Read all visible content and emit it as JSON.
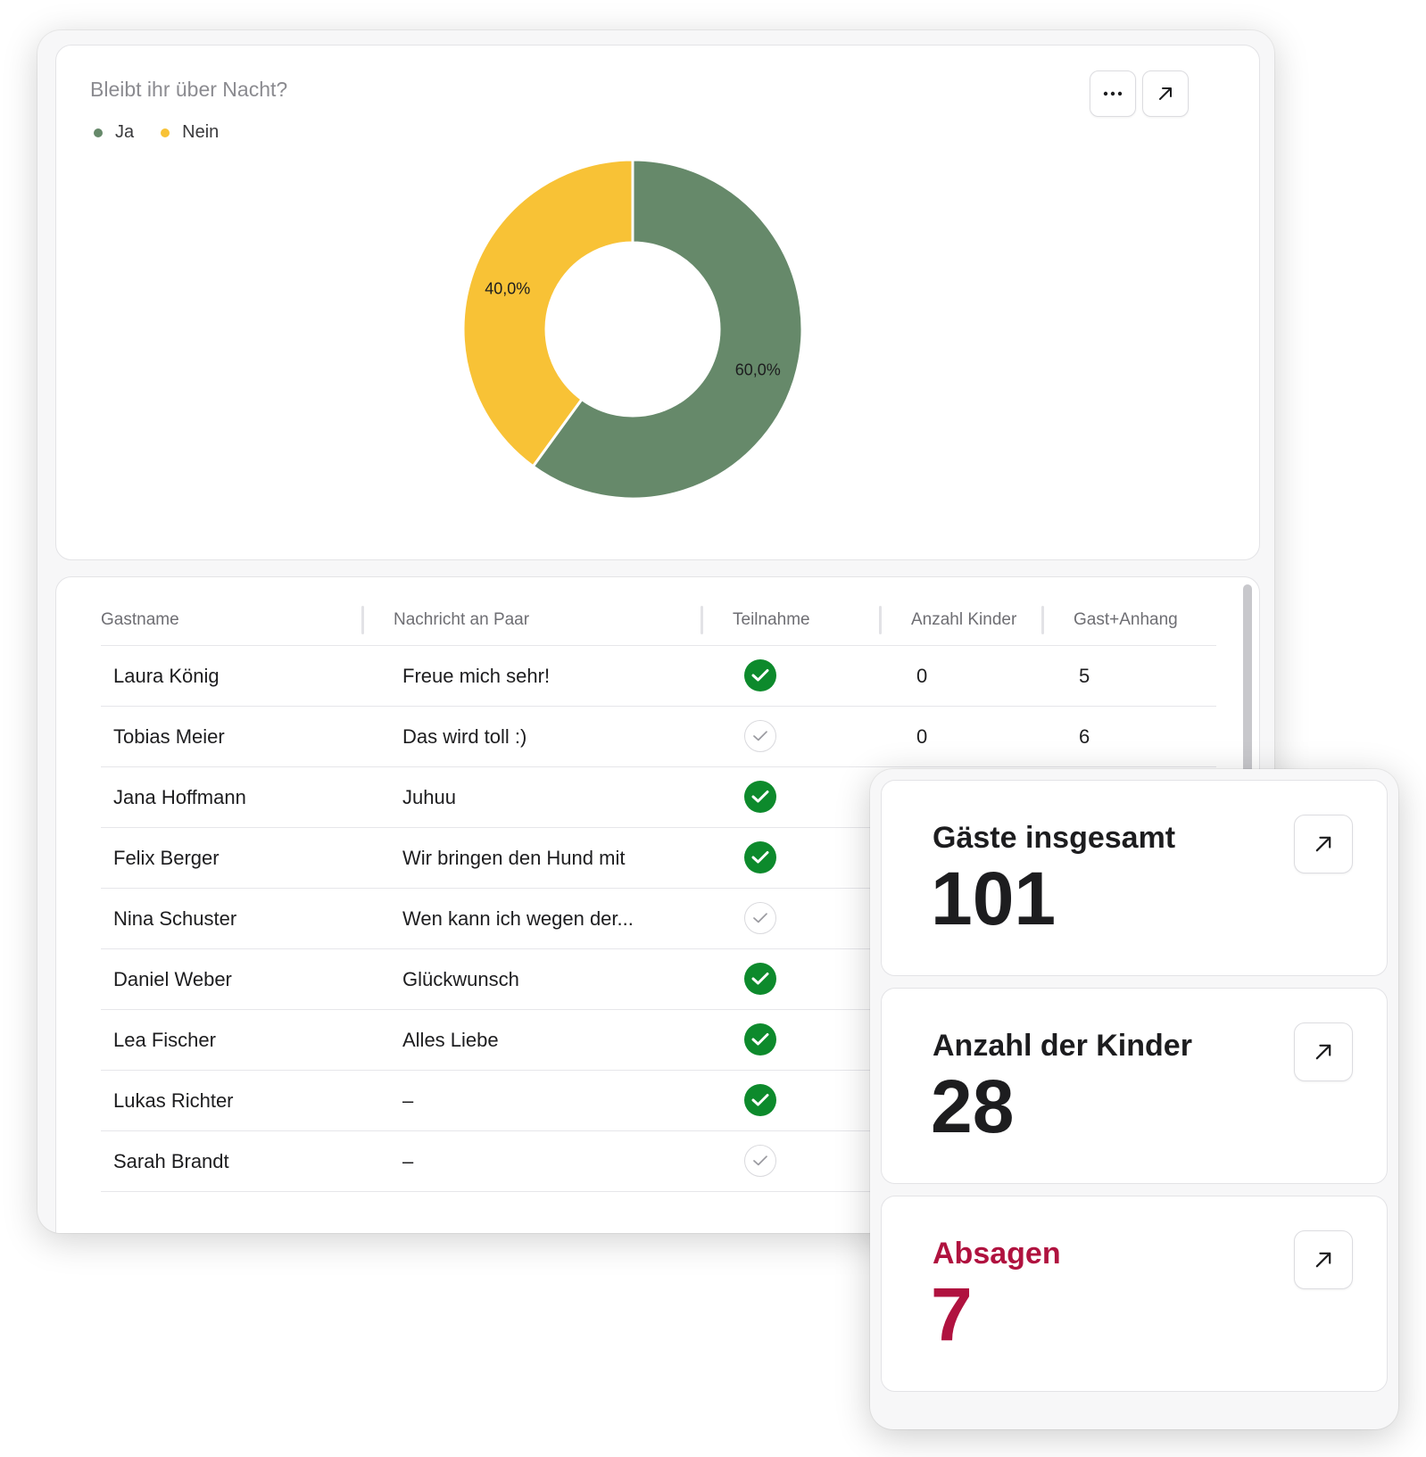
{
  "chart_card": {
    "title": "Bleibt ihr über Nacht?",
    "more_icon": "ellipsis-icon",
    "expand_icon": "arrow-up-right-icon"
  },
  "chart_data": {
    "type": "pie",
    "title": "Bleibt ihr über Nacht?",
    "donut": true,
    "legend_position": "top-left",
    "slices": [
      {
        "label": "Ja",
        "value": 60.0,
        "display": "60,0%",
        "color": "#66896a"
      },
      {
        "label": "Nein",
        "value": 40.0,
        "display": "40,0%",
        "color": "#f8c236"
      }
    ]
  },
  "table": {
    "columns": [
      "Gastname",
      "Nachricht an Paar",
      "Teilnahme",
      "Anzahl Kinder",
      "Gast+Anhang"
    ],
    "rows": [
      {
        "name": "Laura König",
        "message": "Freue mich sehr!",
        "attending": true,
        "children": "0",
        "party": "5"
      },
      {
        "name": "Tobias Meier",
        "message": "Das wird toll :)",
        "attending": false,
        "children": "0",
        "party": "6"
      },
      {
        "name": "Jana Hoffmann",
        "message": "Juhuu",
        "attending": true,
        "children": "",
        "party": ""
      },
      {
        "name": "Felix Berger",
        "message": "Wir bringen den Hund mit",
        "attending": true,
        "children": "",
        "party": ""
      },
      {
        "name": "Nina Schuster",
        "message": "Wen kann ich wegen der...",
        "attending": false,
        "children": "",
        "party": ""
      },
      {
        "name": "Daniel Weber",
        "message": "Glückwunsch",
        "attending": true,
        "children": "",
        "party": ""
      },
      {
        "name": "Lea Fischer",
        "message": "Alles Liebe",
        "attending": true,
        "children": "",
        "party": ""
      },
      {
        "name": "Lukas Richter",
        "message": "–",
        "attending": true,
        "children": "",
        "party": ""
      },
      {
        "name": "Sarah Brandt",
        "message": "–",
        "attending": false,
        "children": "",
        "party": ""
      }
    ],
    "check_icon": "checkmark-icon"
  },
  "stats": [
    {
      "label": "Gäste insgesamt",
      "value": "101",
      "color": "#1d1d1f",
      "icon": "arrow-up-right-icon"
    },
    {
      "label": "Anzahl der Kinder",
      "value": "28",
      "color": "#1d1d1f",
      "icon": "arrow-up-right-icon"
    },
    {
      "label": "Absagen",
      "value": "7",
      "color": "#b0123f",
      "icon": "arrow-up-right-icon"
    }
  ]
}
